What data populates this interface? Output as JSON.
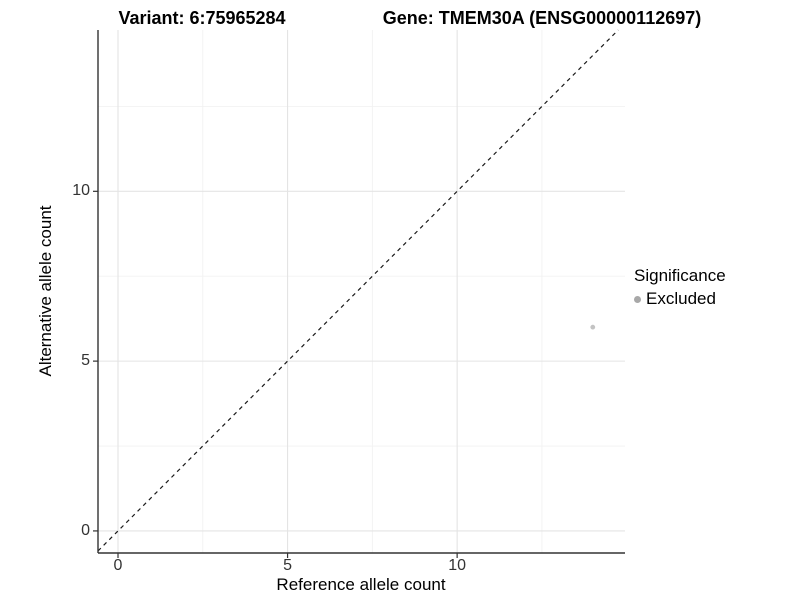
{
  "titles": {
    "variant": "Variant: 6:75965284",
    "gene": "Gene: TMEM30A (ENSG00000112697)"
  },
  "axes": {
    "x_label": "Reference allele count",
    "y_label": "Alternative allele count"
  },
  "legend": {
    "title": "Significance",
    "items": [
      {
        "label": "Excluded",
        "color": "#a8a8a8"
      }
    ]
  },
  "colors": {
    "background": "#ffffff",
    "text": "#000000",
    "axis_line": "#333333",
    "tick_label": "#333333",
    "grid_major": "#e4e4e4",
    "grid_minor": "#f2f2f2",
    "identity_line": "#1a1a1a",
    "point": "#c3c3c3"
  },
  "chart_data": {
    "type": "scatter",
    "title": "Variant: 6:75965284 | Gene: TMEM30A (ENSG00000112697)",
    "xlabel": "Reference allele count",
    "ylabel": "Alternative allele count",
    "xlim": [
      -0.59,
      14.95
    ],
    "ylim": [
      -0.65,
      14.75
    ],
    "x_ticks": [
      0,
      5,
      10
    ],
    "y_ticks": [
      0,
      5,
      10
    ],
    "grid_major": [
      0,
      5,
      10
    ],
    "grid_minor": [
      2.5,
      7.5,
      12.5
    ],
    "reference_line": {
      "equation": "y = x",
      "style": "dashed"
    },
    "legend_position": "right",
    "series": [
      {
        "name": "Excluded",
        "color": "#c3c3c3",
        "points": [
          {
            "x": 14,
            "y": 6
          }
        ]
      }
    ]
  }
}
